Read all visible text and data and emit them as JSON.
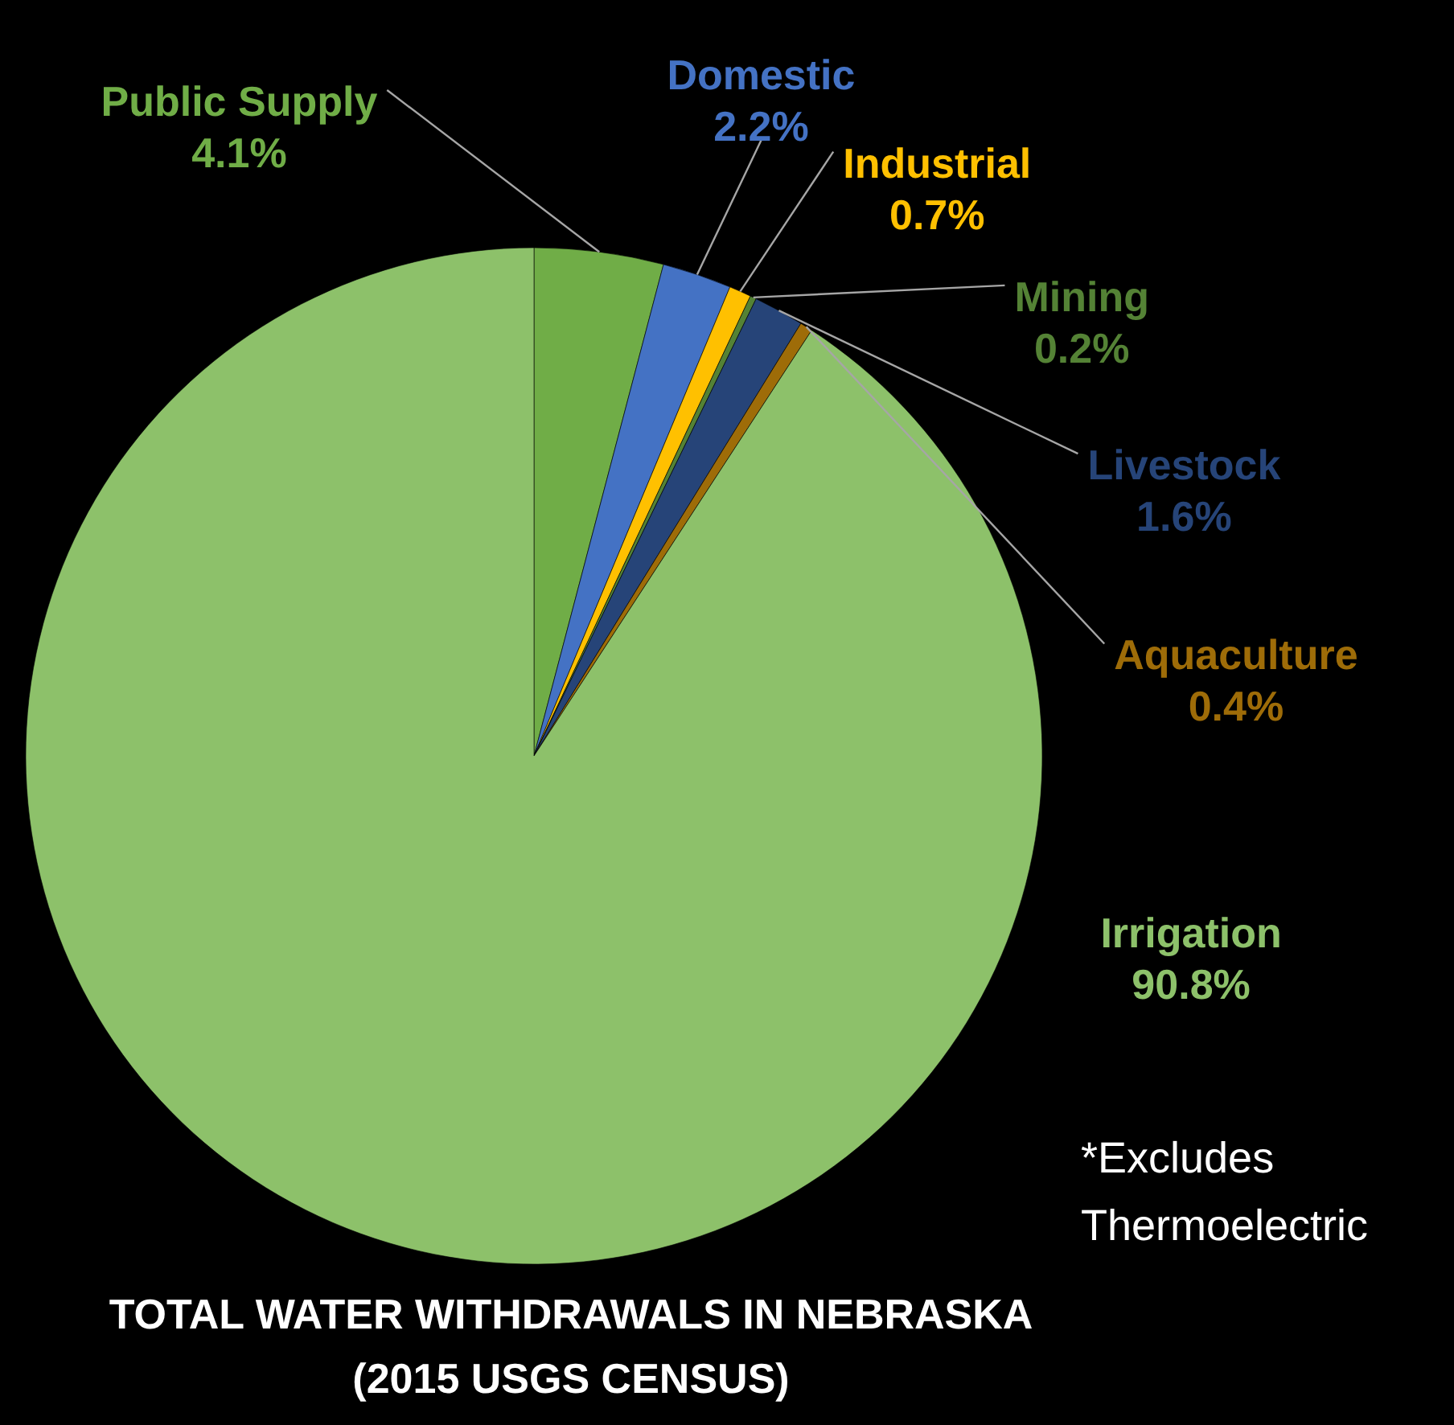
{
  "chart_data": {
    "type": "pie",
    "title": "TOTAL WATER WITHDRAWALS  IN NEBRASKA",
    "subtitle": "(2015 USGS CENSUS)",
    "categories": [
      "Public Supply",
      "Domestic",
      "Industrial",
      "Mining",
      "Livestock",
      "Aquaculture",
      "Irrigation"
    ],
    "values": [
      4.1,
      2.2,
      0.7,
      0.2,
      1.6,
      0.4,
      90.8
    ],
    "value_labels": [
      "4.1%",
      "2.2%",
      "0.7%",
      "0.2%",
      "1.6%",
      "0.4%",
      "90.8%"
    ],
    "colors": [
      "#70ad47",
      "#4472c4",
      "#ffc000",
      "#548235",
      "#264478",
      "#9e6c08",
      "#8dc16a"
    ],
    "annotations": [
      "*Excludes Thermoelectric"
    ]
  }
}
